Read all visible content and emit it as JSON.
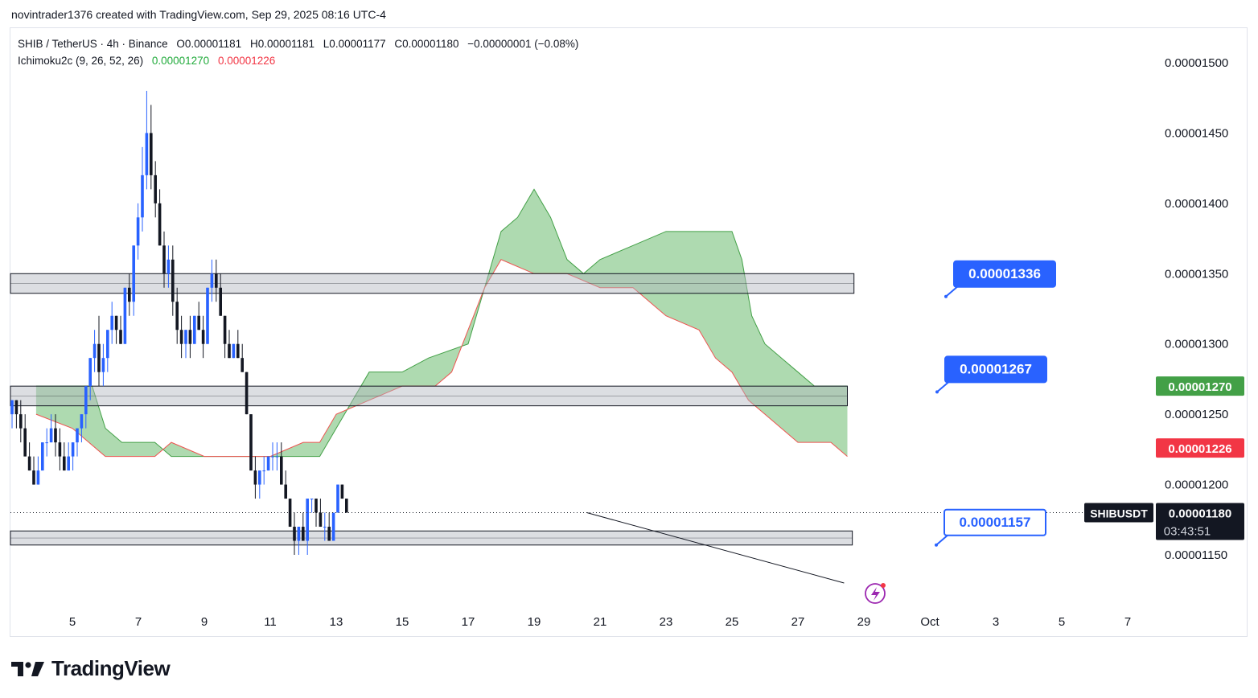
{
  "header": {
    "credit": "novintrader1376 created with TradingView.com, Sep 29, 2025 08:16 UTC-4"
  },
  "legend": {
    "symbol_line": "SHIB / TetherUS · 4h · Binance",
    "open": "O0.00001181",
    "high": "H0.00001181",
    "low": "L0.00001177",
    "close": "C0.00001180",
    "change": "−0.00000001 (−0.08%)",
    "indicator_name": "Ichimoku2c (9, 26, 52, 26)",
    "indicator_value_1": "0.00001270",
    "indicator_value_2": "0.00001226"
  },
  "footer": {
    "brand": "TradingView"
  },
  "colors": {
    "bull": "#2962ff",
    "bear": "#131722",
    "cloud_fill": "#a5d6a7",
    "cloud_line": "#ef5350",
    "label_blue": "#2962ff",
    "price_green": "#43a047",
    "price_red": "#f23645"
  },
  "chart_data": {
    "type": "candlestick",
    "symbol": "SHIBUSDT",
    "ylim": [
      1.13e-05,
      1.525e-05
    ],
    "y_ticks": [
      "0.00001500",
      "0.00001450",
      "0.00001400",
      "0.00001350",
      "0.00001300",
      "0.00001250",
      "0.00001200",
      "0.00001150"
    ],
    "x_ticks": [
      {
        "label": "5",
        "day": 5
      },
      {
        "label": "7",
        "day": 7
      },
      {
        "label": "9",
        "day": 9
      },
      {
        "label": "11",
        "day": 11
      },
      {
        "label": "13",
        "day": 13
      },
      {
        "label": "15",
        "day": 15
      },
      {
        "label": "17",
        "day": 17
      },
      {
        "label": "19",
        "day": 19
      },
      {
        "label": "21",
        "day": 21
      },
      {
        "label": "23",
        "day": 23
      },
      {
        "label": "25",
        "day": 25
      },
      {
        "label": "27",
        "day": 27
      },
      {
        "label": "29",
        "day": 29
      },
      {
        "label": "Oct",
        "day": 31
      },
      {
        "label": "3",
        "day": 33
      },
      {
        "label": "5",
        "day": 35
      },
      {
        "label": "7",
        "day": 37
      }
    ],
    "price_badges": [
      {
        "value": "0.00001270",
        "price": 1.27e-05,
        "kind": "green"
      },
      {
        "value": "0.00001226",
        "price": 1.226e-05,
        "kind": "red"
      }
    ],
    "current": {
      "symbol": "SHIBUSDT",
      "price_text": "0.00001180",
      "price": 1.18e-05,
      "countdown": "03:43:51"
    },
    "zones": [
      {
        "top": 1.35e-05,
        "bottom": 1.336e-05,
        "end_day": 28.7
      },
      {
        "top": 1.27e-05,
        "bottom": 1.256e-05,
        "end_day": 28.5
      },
      {
        "top": 1.167e-05,
        "bottom": 1.157e-05,
        "end_day": 28.65
      }
    ],
    "level_labels": [
      {
        "text": "0.00001336",
        "price": 1.336e-05,
        "style": "filled"
      },
      {
        "text": "0.00001267",
        "price": 1.267e-05,
        "style": "filled"
      },
      {
        "text": "0.00001157",
        "price": 1.157e-05,
        "style": "outline"
      }
    ],
    "trendline": [
      {
        "day": 20.6,
        "price": 1.18e-05
      },
      {
        "day": 28.4,
        "price": 1.13e-05
      }
    ],
    "cloud": {
      "top": [
        [
          3.9,
          1.27e-05
        ],
        [
          5.6,
          1.27e-05
        ],
        [
          6.0,
          1.24e-05
        ],
        [
          6.5,
          1.23e-05
        ],
        [
          7.5,
          1.23e-05
        ],
        [
          8.0,
          1.22e-05
        ],
        [
          12.5,
          1.22e-05
        ],
        [
          13.0,
          1.24e-05
        ],
        [
          13.5,
          1.26e-05
        ],
        [
          14.0,
          1.28e-05
        ],
        [
          15.0,
          1.28e-05
        ],
        [
          15.8,
          1.29e-05
        ],
        [
          17.0,
          1.3e-05
        ],
        [
          17.5,
          1.34e-05
        ],
        [
          18.0,
          1.38e-05
        ],
        [
          18.5,
          1.39e-05
        ],
        [
          19.0,
          1.41e-05
        ],
        [
          19.5,
          1.39e-05
        ],
        [
          20.0,
          1.36e-05
        ],
        [
          20.5,
          1.35e-05
        ],
        [
          21.0,
          1.36e-05
        ],
        [
          22.0,
          1.37e-05
        ],
        [
          23.0,
          1.38e-05
        ],
        [
          24.0,
          1.38e-05
        ],
        [
          25.0,
          1.38e-05
        ],
        [
          25.3,
          1.36e-05
        ],
        [
          25.6,
          1.32e-05
        ],
        [
          26.0,
          1.3e-05
        ],
        [
          26.5,
          1.29e-05
        ],
        [
          27.0,
          1.28e-05
        ],
        [
          27.5,
          1.27e-05
        ],
        [
          28.5,
          1.27e-05
        ]
      ],
      "bottom": [
        [
          3.9,
          1.25e-05
        ],
        [
          5.0,
          1.24e-05
        ],
        [
          6.0,
          1.22e-05
        ],
        [
          6.5,
          1.22e-05
        ],
        [
          7.5,
          1.22e-05
        ],
        [
          8.0,
          1.23e-05
        ],
        [
          9.0,
          1.22e-05
        ],
        [
          10.0,
          1.22e-05
        ],
        [
          11.0,
          1.22e-05
        ],
        [
          12.0,
          1.23e-05
        ],
        [
          12.5,
          1.23e-05
        ],
        [
          13.0,
          1.25e-05
        ],
        [
          14.0,
          1.26e-05
        ],
        [
          15.0,
          1.27e-05
        ],
        [
          16.0,
          1.27e-05
        ],
        [
          16.5,
          1.28e-05
        ],
        [
          17.0,
          1.31e-05
        ],
        [
          17.5,
          1.34e-05
        ],
        [
          18.0,
          1.36e-05
        ],
        [
          19.0,
          1.35e-05
        ],
        [
          20.0,
          1.35e-05
        ],
        [
          21.0,
          1.34e-05
        ],
        [
          22.0,
          1.34e-05
        ],
        [
          22.5,
          1.33e-05
        ],
        [
          23.0,
          1.32e-05
        ],
        [
          24.0,
          1.31e-05
        ],
        [
          24.5,
          1.29e-05
        ],
        [
          25.0,
          1.28e-05
        ],
        [
          25.5,
          1.26e-05
        ],
        [
          26.0,
          1.25e-05
        ],
        [
          26.5,
          1.24e-05
        ],
        [
          27.0,
          1.23e-05
        ],
        [
          28.0,
          1.23e-05
        ],
        [
          28.5,
          1.22e-05
        ]
      ]
    },
    "candles": [
      [
        1.25e-05,
        1.26e-05,
        1.24e-05,
        1.26e-05
      ],
      [
        1.26e-05,
        1.26e-05,
        1.24e-05,
        1.25e-05
      ],
      [
        1.25e-05,
        1.26e-05,
        1.23e-05,
        1.24e-05
      ],
      [
        1.24e-05,
        1.25e-05,
        1.22e-05,
        1.22e-05
      ],
      [
        1.22e-05,
        1.23e-05,
        1.21e-05,
        1.21e-05
      ],
      [
        1.21e-05,
        1.22e-05,
        1.2e-05,
        1.2e-05
      ],
      [
        1.2e-05,
        1.22e-05,
        1.2e-05,
        1.21e-05
      ],
      [
        1.21e-05,
        1.23e-05,
        1.21e-05,
        1.23e-05
      ],
      [
        1.23e-05,
        1.24e-05,
        1.22e-05,
        1.23e-05
      ],
      [
        1.23e-05,
        1.25e-05,
        1.23e-05,
        1.24e-05
      ],
      [
        1.24e-05,
        1.25e-05,
        1.22e-05,
        1.23e-05
      ],
      [
        1.23e-05,
        1.24e-05,
        1.21e-05,
        1.22e-05
      ],
      [
        1.22e-05,
        1.23e-05,
        1.21e-05,
        1.21e-05
      ],
      [
        1.21e-05,
        1.23e-05,
        1.21e-05,
        1.22e-05
      ],
      [
        1.22e-05,
        1.23e-05,
        1.21e-05,
        1.23e-05
      ],
      [
        1.23e-05,
        1.24e-05,
        1.22e-05,
        1.24e-05
      ],
      [
        1.24e-05,
        1.25e-05,
        1.23e-05,
        1.25e-05
      ],
      [
        1.25e-05,
        1.27e-05,
        1.24e-05,
        1.27e-05
      ],
      [
        1.27e-05,
        1.29e-05,
        1.26e-05,
        1.29e-05
      ],
      [
        1.29e-05,
        1.31e-05,
        1.28e-05,
        1.3e-05
      ],
      [
        1.3e-05,
        1.32e-05,
        1.27e-05,
        1.28e-05
      ],
      [
        1.28e-05,
        1.3e-05,
        1.27e-05,
        1.29e-05
      ],
      [
        1.29e-05,
        1.31e-05,
        1.28e-05,
        1.31e-05
      ],
      [
        1.31e-05,
        1.33e-05,
        1.3e-05,
        1.32e-05
      ],
      [
        1.32e-05,
        1.32e-05,
        1.3e-05,
        1.31e-05
      ],
      [
        1.31e-05,
        1.32e-05,
        1.3e-05,
        1.3e-05
      ],
      [
        1.3e-05,
        1.34e-05,
        1.3e-05,
        1.34e-05
      ],
      [
        1.34e-05,
        1.35e-05,
        1.32e-05,
        1.33e-05
      ],
      [
        1.33e-05,
        1.37e-05,
        1.32e-05,
        1.37e-05
      ],
      [
        1.37e-05,
        1.4e-05,
        1.36e-05,
        1.39e-05
      ],
      [
        1.39e-05,
        1.44e-05,
        1.38e-05,
        1.42e-05
      ],
      [
        1.42e-05,
        1.48e-05,
        1.41e-05,
        1.45e-05
      ],
      [
        1.45e-05,
        1.47e-05,
        1.41e-05,
        1.42e-05
      ],
      [
        1.42e-05,
        1.43e-05,
        1.39e-05,
        1.4e-05
      ],
      [
        1.4e-05,
        1.41e-05,
        1.37e-05,
        1.37e-05
      ],
      [
        1.37e-05,
        1.38e-05,
        1.34e-05,
        1.35e-05
      ],
      [
        1.35e-05,
        1.37e-05,
        1.34e-05,
        1.36e-05
      ],
      [
        1.36e-05,
        1.37e-05,
        1.32e-05,
        1.33e-05
      ],
      [
        1.33e-05,
        1.34e-05,
        1.3e-05,
        1.31e-05
      ],
      [
        1.31e-05,
        1.32e-05,
        1.29e-05,
        1.3e-05
      ],
      [
        1.3e-05,
        1.31e-05,
        1.29e-05,
        1.31e-05
      ],
      [
        1.31e-05,
        1.32e-05,
        1.29e-05,
        1.3e-05
      ],
      [
        1.3e-05,
        1.32e-05,
        1.3e-05,
        1.32e-05
      ],
      [
        1.32e-05,
        1.33e-05,
        1.31e-05,
        1.31e-05
      ],
      [
        1.31e-05,
        1.32e-05,
        1.29e-05,
        1.3e-05
      ],
      [
        1.3e-05,
        1.34e-05,
        1.3e-05,
        1.34e-05
      ],
      [
        1.34e-05,
        1.36e-05,
        1.33e-05,
        1.35e-05
      ],
      [
        1.35e-05,
        1.36e-05,
        1.33e-05,
        1.34e-05
      ],
      [
        1.34e-05,
        1.35e-05,
        1.32e-05,
        1.32e-05
      ],
      [
        1.32e-05,
        1.32e-05,
        1.29e-05,
        1.3e-05
      ],
      [
        1.3e-05,
        1.31e-05,
        1.29e-05,
        1.29e-05
      ],
      [
        1.29e-05,
        1.3e-05,
        1.29e-05,
        1.3e-05
      ],
      [
        1.3e-05,
        1.31e-05,
        1.29e-05,
        1.29e-05
      ],
      [
        1.29e-05,
        1.3e-05,
        1.28e-05,
        1.28e-05
      ],
      [
        1.28e-05,
        1.28e-05,
        1.25e-05,
        1.25e-05
      ],
      [
        1.25e-05,
        1.25e-05,
        1.21e-05,
        1.21e-05
      ],
      [
        1.21e-05,
        1.22e-05,
        1.19e-05,
        1.2e-05
      ],
      [
        1.2e-05,
        1.21e-05,
        1.19e-05,
        1.21e-05
      ],
      [
        1.21e-05,
        1.22e-05,
        1.2e-05,
        1.21e-05
      ],
      [
        1.21e-05,
        1.22e-05,
        1.21e-05,
        1.22e-05
      ],
      [
        1.22e-05,
        1.23e-05,
        1.21e-05,
        1.22e-05
      ],
      [
        1.22e-05,
        1.23e-05,
        1.21e-05,
        1.22e-05
      ],
      [
        1.22e-05,
        1.23e-05,
        1.2e-05,
        1.2e-05
      ],
      [
        1.2e-05,
        1.21e-05,
        1.19e-05,
        1.19e-05
      ],
      [
        1.19e-05,
        1.19e-05,
        1.17e-05,
        1.17e-05
      ],
      [
        1.17e-05,
        1.18e-05,
        1.15e-05,
        1.16e-05
      ],
      [
        1.16e-05,
        1.17e-05,
        1.15e-05,
        1.17e-05
      ],
      [
        1.17e-05,
        1.18e-05,
        1.16e-05,
        1.16e-05
      ],
      [
        1.16e-05,
        1.19e-05,
        1.15e-05,
        1.19e-05
      ],
      [
        1.19e-05,
        1.19e-05,
        1.18e-05,
        1.19e-05
      ],
      [
        1.19e-05,
        1.19e-05,
        1.17e-05,
        1.18e-05
      ],
      [
        1.18e-05,
        1.19e-05,
        1.17e-05,
        1.17e-05
      ],
      [
        1.17e-05,
        1.18e-05,
        1.16e-05,
        1.17e-05
      ],
      [
        1.17e-05,
        1.18e-05,
        1.16e-05,
        1.16e-05
      ],
      [
        1.16e-05,
        1.18e-05,
        1.16e-05,
        1.18e-05
      ],
      [
        1.18e-05,
        1.2e-05,
        1.18e-05,
        1.2e-05
      ],
      [
        1.2e-05,
        1.2e-05,
        1.19e-05,
        1.19e-05
      ],
      [
        1.19e-05,
        1.19e-05,
        1.18e-05,
        1.18e-05
      ]
    ]
  }
}
